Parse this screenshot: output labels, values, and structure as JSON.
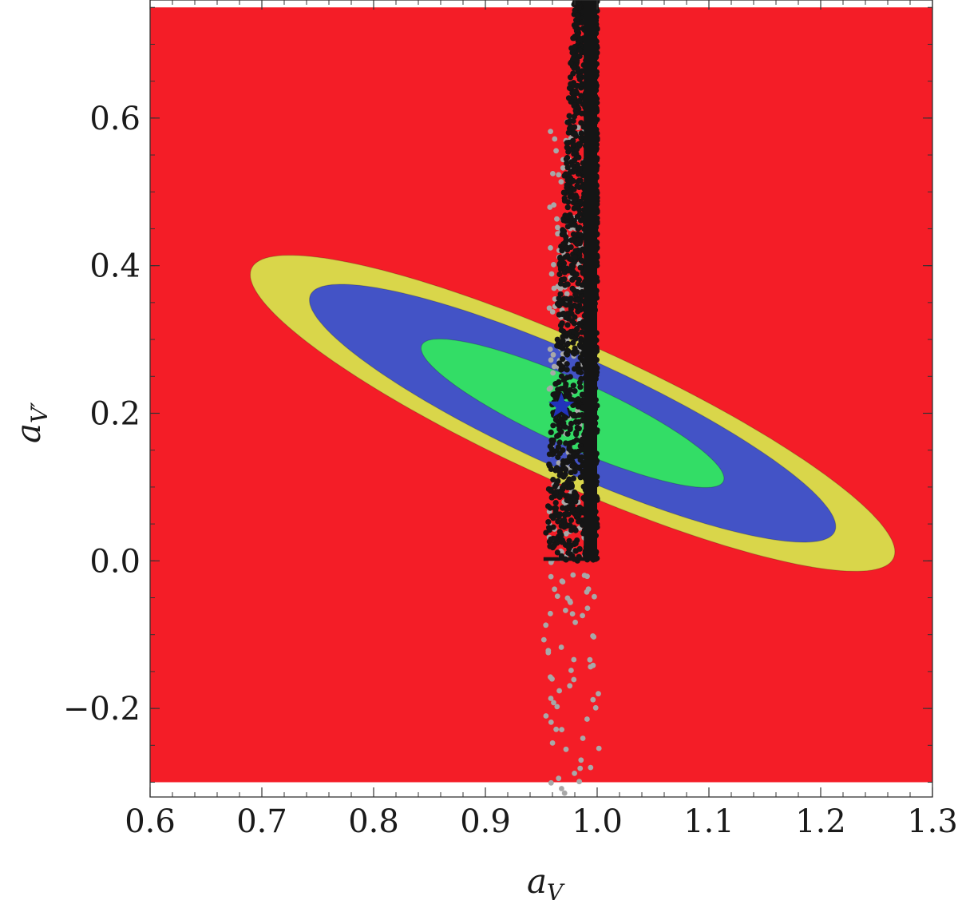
{
  "chart_data": {
    "type": "scatter",
    "title": "",
    "xlabel": {
      "base": "a",
      "sub": "V"
    },
    "ylabel": {
      "base": "a",
      "sub": "V′"
    },
    "xlim": [
      0.6,
      1.3
    ],
    "ylim": [
      -0.32,
      0.76
    ],
    "x_ticks": [
      {
        "value": 0.6,
        "label": "0.6"
      },
      {
        "value": 0.7,
        "label": "0.7"
      },
      {
        "value": 0.8,
        "label": "0.8"
      },
      {
        "value": 0.9,
        "label": "0.9"
      },
      {
        "value": 1.0,
        "label": "1.0"
      },
      {
        "value": 1.1,
        "label": "1.1"
      },
      {
        "value": 1.2,
        "label": "1.2"
      },
      {
        "value": 1.3,
        "label": "1.3"
      }
    ],
    "y_ticks": [
      {
        "value": -0.2,
        "label": "−0.2"
      },
      {
        "value": 0.0,
        "label": "0.0"
      },
      {
        "value": 0.2,
        "label": "0.2"
      },
      {
        "value": 0.4,
        "label": "0.4"
      },
      {
        "value": 0.6,
        "label": "0.6"
      }
    ],
    "background_region": {
      "x": [
        0.6,
        1.3
      ],
      "y": [
        -0.3,
        0.75
      ],
      "color": "#f41d27"
    },
    "confidence_regions": [
      {
        "level": "outer",
        "color": "#d9d64a",
        "center": [
          0.978,
          0.2
        ],
        "semi_major": 0.349,
        "semi_minor": 0.085,
        "angle_deg": -35.5
      },
      {
        "level": "middle",
        "color": "#4353c6",
        "center": [
          0.978,
          0.2
        ],
        "semi_major": 0.285,
        "semi_minor": 0.069,
        "angle_deg": -35.5
      },
      {
        "level": "inner",
        "color": "#33dd66",
        "center": [
          0.978,
          0.2
        ],
        "semi_major": 0.164,
        "semi_minor": 0.04,
        "angle_deg": -35.5
      }
    ],
    "best_fit": {
      "x": 0.968,
      "y": 0.21,
      "marker": "star",
      "color": "#2233bb"
    },
    "scatter": {
      "gray_points": {
        "color": "#a8a8a8",
        "x_range": [
          0.945,
          0.995
        ],
        "y_range": [
          -0.33,
          0.6
        ]
      },
      "black_points": {
        "color": "#151515",
        "x_range": [
          0.952,
          1.0
        ],
        "y_range": [
          0.0,
          0.78
        ]
      }
    },
    "grid": false,
    "legend": "none"
  }
}
